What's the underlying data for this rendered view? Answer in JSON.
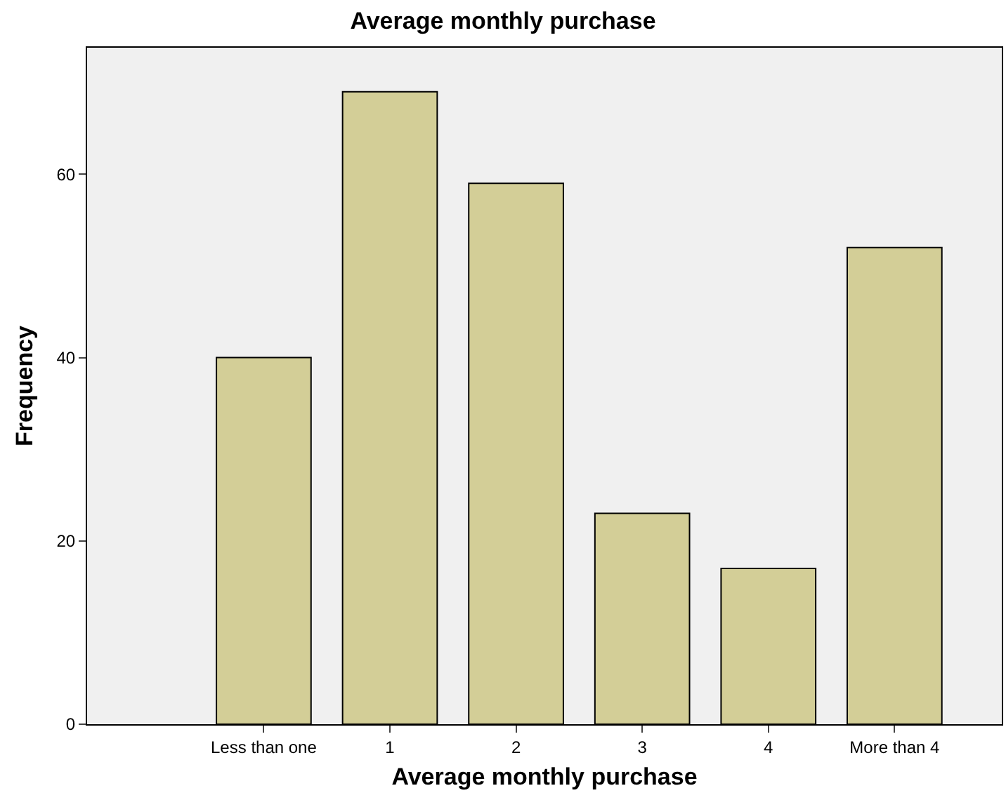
{
  "chart_data": {
    "type": "bar",
    "title": "Average monthly purchase",
    "xlabel": "Average monthly purchase",
    "ylabel": "Frequency",
    "categories": [
      "Less than one",
      "1",
      "2",
      "3",
      "4",
      "More than 4"
    ],
    "values": [
      40,
      69,
      59,
      23,
      17,
      52
    ],
    "color": "#d3ce97",
    "ylim": [
      0,
      73.8
    ],
    "yticks": [
      0,
      20,
      40,
      60
    ],
    "grid": false,
    "legend": false
  }
}
